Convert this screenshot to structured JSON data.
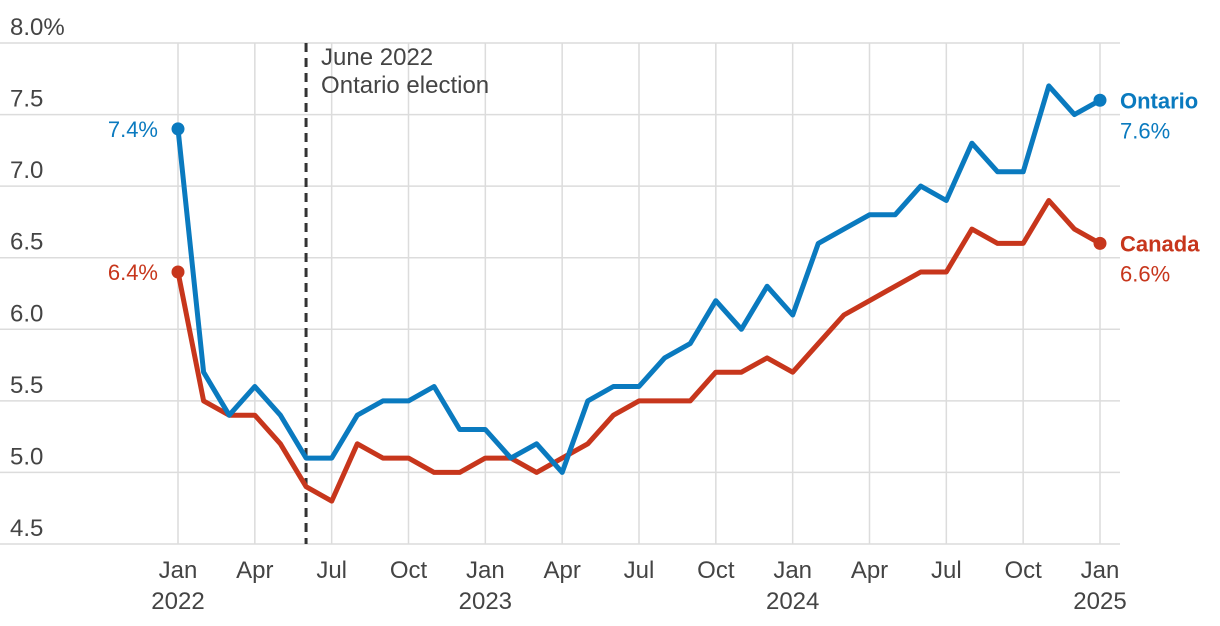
{
  "chart_data": {
    "type": "line",
    "y_axis": {
      "ylim": [
        4.5,
        8.0
      ],
      "ticks": [
        4.5,
        5.0,
        5.5,
        6.0,
        6.5,
        7.0,
        7.5,
        8.0
      ],
      "tick_labels": [
        "4.5",
        "5.0",
        "5.5",
        "6.0",
        "6.5",
        "7.0",
        "7.5",
        "8.0%"
      ]
    },
    "x_axis": {
      "start": "2022-01",
      "months": 37,
      "ticks": [
        {
          "index": 0,
          "label": "Jan",
          "year": "2022"
        },
        {
          "index": 3,
          "label": "Apr"
        },
        {
          "index": 6,
          "label": "Jul"
        },
        {
          "index": 9,
          "label": "Oct"
        },
        {
          "index": 12,
          "label": "Jan",
          "year": "2023"
        },
        {
          "index": 15,
          "label": "Apr"
        },
        {
          "index": 18,
          "label": "Jul"
        },
        {
          "index": 21,
          "label": "Oct"
        },
        {
          "index": 24,
          "label": "Jan",
          "year": "2024"
        },
        {
          "index": 27,
          "label": "Apr"
        },
        {
          "index": 30,
          "label": "Jul"
        },
        {
          "index": 33,
          "label": "Oct"
        },
        {
          "index": 36,
          "label": "Jan",
          "year": "2025"
        }
      ]
    },
    "annotation": {
      "index": 5,
      "line1": "June 2022",
      "line2": "Ontario election"
    },
    "series": [
      {
        "name": "Ontario",
        "color": "#0a7abf",
        "start_label": "7.4%",
        "end_label": "7.6%",
        "values": [
          7.4,
          5.7,
          5.4,
          5.6,
          5.4,
          5.1,
          5.1,
          5.4,
          5.5,
          5.5,
          5.6,
          5.3,
          5.3,
          5.1,
          5.2,
          5.0,
          5.5,
          5.6,
          5.6,
          5.8,
          5.9,
          6.2,
          6.0,
          6.3,
          6.1,
          6.6,
          6.7,
          6.8,
          6.8,
          7.0,
          6.9,
          7.3,
          7.1,
          7.1,
          7.7,
          7.5,
          7.6
        ]
      },
      {
        "name": "Canada",
        "color": "#c7361c",
        "start_label": "6.4%",
        "end_label": "6.6%",
        "values": [
          6.4,
          5.5,
          5.4,
          5.4,
          5.2,
          4.9,
          4.8,
          5.2,
          5.1,
          5.1,
          5.0,
          5.0,
          5.1,
          5.1,
          5.0,
          5.1,
          5.2,
          5.4,
          5.5,
          5.5,
          5.5,
          5.7,
          5.7,
          5.8,
          5.7,
          5.9,
          6.1,
          6.2,
          6.3,
          6.4,
          6.4,
          6.7,
          6.6,
          6.6,
          6.9,
          6.7,
          6.6
        ]
      }
    ]
  }
}
